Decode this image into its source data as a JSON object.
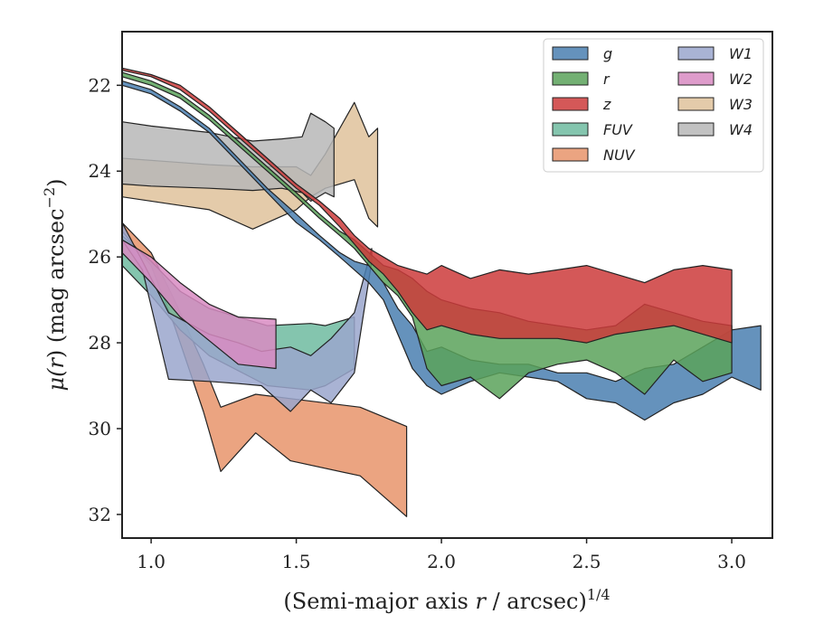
{
  "chart_data": {
    "type": "area",
    "xlabel": "(Semi-major axis r / arcsec)^1/4",
    "xlabel_main": "(Semi-major axis ",
    "xlabel_var": "r",
    "xlabel_mid": " / arcsec)",
    "xlabel_sup": "1/4",
    "ylabel": "μ(r) (mag arcsec^−2)",
    "ylabel_pre": "μ(",
    "ylabel_var": "r",
    "ylabel_mid": ") (mag arcsec",
    "ylabel_sup": "−2",
    "ylabel_post": ")",
    "xlim": [
      0.9,
      3.14
    ],
    "ylim": [
      32.55,
      20.75
    ],
    "y_inverted": true,
    "grid": false,
    "legend_position": "top-right",
    "xticks": [
      {
        "value": 1.0,
        "label": "1.0"
      },
      {
        "value": 1.5,
        "label": "1.5"
      },
      {
        "value": 2.0,
        "label": "2.0"
      },
      {
        "value": 2.5,
        "label": "2.5"
      },
      {
        "value": 3.0,
        "label": "3.0"
      }
    ],
    "yticks": [
      {
        "value": 22,
        "label": "22"
      },
      {
        "value": 24,
        "label": "24"
      },
      {
        "value": 26,
        "label": "26"
      },
      {
        "value": 28,
        "label": "28"
      },
      {
        "value": 30,
        "label": "30"
      },
      {
        "value": 32,
        "label": "32"
      }
    ],
    "series": [
      {
        "name": "NUV",
        "color": "#e8946b",
        "x": [
          0.9,
          1.0,
          1.08,
          1.18,
          1.24,
          1.36,
          1.48,
          1.72,
          1.88
        ],
        "y_bright": [
          25.2,
          25.9,
          27.0,
          28.5,
          29.5,
          29.2,
          29.3,
          29.5,
          29.95
        ],
        "y_faint": [
          25.4,
          26.2,
          27.6,
          29.6,
          31.0,
          30.1,
          30.75,
          31.1,
          32.05
        ]
      },
      {
        "name": "FUV",
        "color": "#6fbba0",
        "x": [
          0.9,
          1.0,
          1.1,
          1.2,
          1.4,
          1.55,
          1.6,
          1.65,
          1.7
        ],
        "y_bright": [
          25.5,
          26.1,
          26.8,
          27.2,
          27.6,
          27.55,
          27.6,
          27.5,
          27.4
        ],
        "y_faint": [
          26.2,
          26.9,
          27.7,
          28.3,
          29.0,
          29.1,
          29.0,
          28.8,
          28.6
        ]
      },
      {
        "name": "W1",
        "color": "#9aa6cc",
        "x": [
          0.9,
          0.97,
          1.06,
          1.2,
          1.3,
          1.38,
          1.48,
          1.55,
          1.62,
          1.7,
          1.76
        ],
        "y_bright": [
          25.2,
          26.1,
          27.3,
          27.8,
          28.0,
          28.2,
          28.1,
          28.3,
          27.9,
          27.3,
          25.8
        ],
        "y_faint": [
          25.6,
          26.3,
          28.85,
          28.9,
          28.95,
          29.0,
          29.6,
          29.1,
          29.4,
          28.7,
          26.1
        ]
      },
      {
        "name": "W2",
        "color": "#d88bc2",
        "x": [
          0.9,
          1.0,
          1.1,
          1.2,
          1.3,
          1.43
        ],
        "y_bright": [
          25.6,
          26.0,
          26.6,
          27.1,
          27.4,
          27.45
        ],
        "y_faint": [
          25.9,
          26.6,
          27.4,
          27.95,
          28.5,
          28.6
        ]
      },
      {
        "name": "W3",
        "color": "#dfc29b",
        "x": [
          0.9,
          1.1,
          1.2,
          1.35,
          1.5,
          1.55,
          1.6,
          1.7,
          1.75,
          1.78
        ],
        "y_bright": [
          23.7,
          23.8,
          23.85,
          23.9,
          23.9,
          24.1,
          23.6,
          22.4,
          23.2,
          23.0
        ],
        "y_faint": [
          24.6,
          24.8,
          24.9,
          25.35,
          24.9,
          24.6,
          24.4,
          24.2,
          25.1,
          25.3
        ]
      },
      {
        "name": "W4",
        "color": "#b7b7b7",
        "x": [
          0.9,
          1.0,
          1.2,
          1.35,
          1.45,
          1.52,
          1.55,
          1.6,
          1.63
        ],
        "y_bright": [
          22.85,
          22.95,
          23.1,
          23.3,
          23.25,
          23.2,
          22.65,
          22.85,
          23.0
        ],
        "y_faint": [
          24.3,
          24.35,
          24.4,
          24.45,
          24.4,
          24.5,
          24.7,
          24.5,
          24.6
        ]
      },
      {
        "name": "g",
        "color": "#4a7fb0",
        "x": [
          0.9,
          1.0,
          1.1,
          1.2,
          1.3,
          1.4,
          1.5,
          1.58,
          1.65,
          1.7,
          1.75,
          1.8,
          1.85,
          1.9,
          1.95,
          2.0,
          2.1,
          2.2,
          2.3,
          2.4,
          2.5,
          2.6,
          2.7,
          2.8,
          2.9,
          3.0,
          3.1
        ],
        "y_bright": [
          21.9,
          22.1,
          22.5,
          23.0,
          23.7,
          24.4,
          25.0,
          25.5,
          25.9,
          26.1,
          26.2,
          26.6,
          27.2,
          27.6,
          28.2,
          28.1,
          28.4,
          28.5,
          28.5,
          28.7,
          28.7,
          28.9,
          28.6,
          28.5,
          28.1,
          27.7,
          27.6
        ],
        "y_faint": [
          22.0,
          22.2,
          22.6,
          23.1,
          23.8,
          24.5,
          25.2,
          25.6,
          26.0,
          26.3,
          26.6,
          27.0,
          27.8,
          28.6,
          29.0,
          29.2,
          28.9,
          28.7,
          28.8,
          28.9,
          29.3,
          29.4,
          29.8,
          29.4,
          29.2,
          28.8,
          29.1
        ]
      },
      {
        "name": "r",
        "color": "#5aa25a",
        "x": [
          0.9,
          1.0,
          1.1,
          1.2,
          1.3,
          1.4,
          1.5,
          1.58,
          1.65,
          1.7,
          1.75,
          1.8,
          1.85,
          1.9,
          1.95,
          2.0,
          2.1,
          2.2,
          2.3,
          2.4,
          2.5,
          2.6,
          2.7,
          2.8,
          2.9,
          3.0
        ],
        "y_bright": [
          21.7,
          21.9,
          22.2,
          22.7,
          23.3,
          23.9,
          24.5,
          25.0,
          25.4,
          25.6,
          25.9,
          26.2,
          26.3,
          26.5,
          26.8,
          27.0,
          27.2,
          27.3,
          27.5,
          27.6,
          27.7,
          27.6,
          27.1,
          27.3,
          27.5,
          27.6
        ],
        "y_faint": [
          21.8,
          22.0,
          22.3,
          22.8,
          23.4,
          24.0,
          24.6,
          25.1,
          25.5,
          25.8,
          26.2,
          26.6,
          26.9,
          27.4,
          28.6,
          29.0,
          28.8,
          29.3,
          28.7,
          28.5,
          28.4,
          28.7,
          29.2,
          28.4,
          28.9,
          28.7
        ]
      },
      {
        "name": "z",
        "color": "#cc3b3b",
        "x": [
          0.9,
          1.0,
          1.1,
          1.2,
          1.3,
          1.4,
          1.5,
          1.58,
          1.65,
          1.7,
          1.75,
          1.8,
          1.85,
          1.9,
          1.95,
          2.0,
          2.1,
          2.2,
          2.3,
          2.4,
          2.5,
          2.6,
          2.7,
          2.8,
          2.9,
          3.0
        ],
        "y_bright": [
          21.6,
          21.75,
          22.0,
          22.5,
          23.1,
          23.7,
          24.3,
          24.7,
          25.1,
          25.5,
          25.8,
          26.0,
          26.2,
          26.3,
          26.4,
          26.2,
          26.5,
          26.3,
          26.4,
          26.3,
          26.2,
          26.4,
          26.6,
          26.3,
          26.2,
          26.3
        ],
        "y_faint": [
          21.65,
          21.8,
          22.1,
          22.6,
          23.2,
          23.8,
          24.4,
          24.8,
          25.3,
          25.7,
          26.1,
          26.4,
          26.8,
          27.3,
          27.7,
          27.6,
          27.8,
          27.9,
          27.9,
          27.9,
          28.0,
          27.8,
          27.7,
          27.6,
          27.8,
          28.0
        ]
      }
    ],
    "legend_order": [
      "g",
      "r",
      "z",
      "FUV",
      "NUV",
      "W1",
      "W2",
      "W3",
      "W4"
    ]
  }
}
